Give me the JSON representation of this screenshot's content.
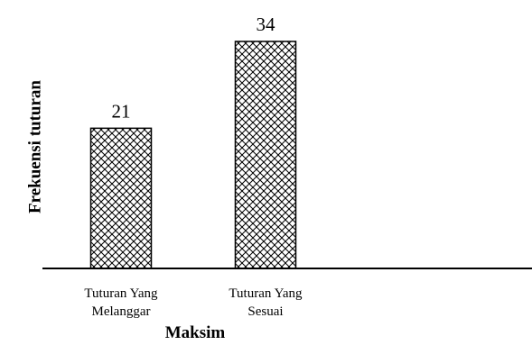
{
  "chart_data": {
    "type": "bar",
    "categories": [
      [
        "Tuturan Yang",
        "Melanggar"
      ],
      [
        "Tuturan Yang",
        "Sesuai"
      ]
    ],
    "values": [
      21,
      34
    ],
    "data_labels": [
      "21",
      "34"
    ],
    "xlabel": "Maksim",
    "ylabel": "Frekuensi tuturan",
    "ylim": [
      0,
      34
    ],
    "grid": false,
    "bar_fill": "crosshatch",
    "colors": {
      "bar_stroke": "#000000",
      "bar_fill_bg": "#ffffff",
      "axis": "#000000"
    }
  }
}
